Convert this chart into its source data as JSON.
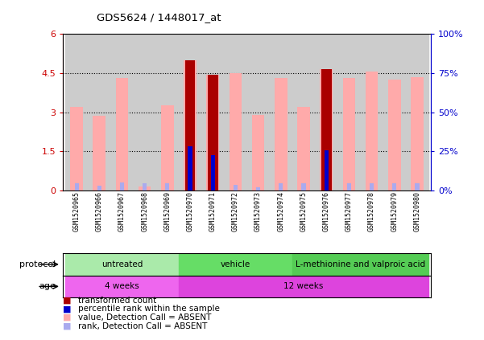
{
  "title": "GDS5624 / 1448017_at",
  "samples": [
    "GSM1520965",
    "GSM1520966",
    "GSM1520967",
    "GSM1520968",
    "GSM1520969",
    "GSM1520970",
    "GSM1520971",
    "GSM1520972",
    "GSM1520973",
    "GSM1520974",
    "GSM1520975",
    "GSM1520976",
    "GSM1520977",
    "GSM1520978",
    "GSM1520979",
    "GSM1520980"
  ],
  "pink_values": [
    3.2,
    2.85,
    4.3,
    0.15,
    3.25,
    5.0,
    4.45,
    4.5,
    2.9,
    4.3,
    3.2,
    4.65,
    4.3,
    4.55,
    4.25,
    4.35
  ],
  "red_values": [
    0.0,
    0.0,
    0.0,
    0.0,
    0.0,
    5.0,
    4.45,
    0.0,
    0.0,
    0.0,
    0.0,
    4.65,
    0.0,
    0.0,
    0.0,
    0.0
  ],
  "blue_rank_values": [
    0.0,
    0.0,
    0.0,
    0.0,
    0.0,
    1.7,
    1.35,
    0.0,
    0.0,
    0.0,
    0.0,
    1.55,
    0.0,
    0.0,
    0.0,
    0.0
  ],
  "lightblue_rank_values": [
    0.28,
    0.18,
    0.3,
    0.28,
    0.28,
    0.0,
    0.0,
    0.22,
    0.12,
    0.28,
    0.28,
    0.0,
    0.28,
    0.28,
    0.28,
    0.28
  ],
  "ylim": [
    0,
    6
  ],
  "yticks": [
    0,
    1.5,
    3.0,
    4.5,
    6
  ],
  "ytick_labels": [
    "0",
    "1.5",
    "3",
    "4.5",
    "6"
  ],
  "right_ytick_labels": [
    "0%",
    "25%",
    "50%",
    "75%",
    "100%"
  ],
  "protocol_groups": [
    {
      "label": "untreated",
      "start": 0,
      "end": 5,
      "color": "#aaeaaa"
    },
    {
      "label": "vehicle",
      "start": 5,
      "end": 10,
      "color": "#66dd66"
    },
    {
      "label": "L-methionine and valproic acid",
      "start": 10,
      "end": 16,
      "color": "#55cc55"
    }
  ],
  "age_groups": [
    {
      "label": "4 weeks",
      "start": 0,
      "end": 5,
      "color": "#ee66ee"
    },
    {
      "label": "12 weeks",
      "start": 5,
      "end": 16,
      "color": "#dd44dd"
    }
  ],
  "pink_color": "#ffaaaa",
  "red_color": "#aa0000",
  "blue_color": "#0000cc",
  "lightblue_color": "#aaaaee",
  "bg_color": "#ffffff",
  "label_color_left": "#cc0000",
  "label_color_right": "#0000cc",
  "xtick_bg": "#cccccc"
}
